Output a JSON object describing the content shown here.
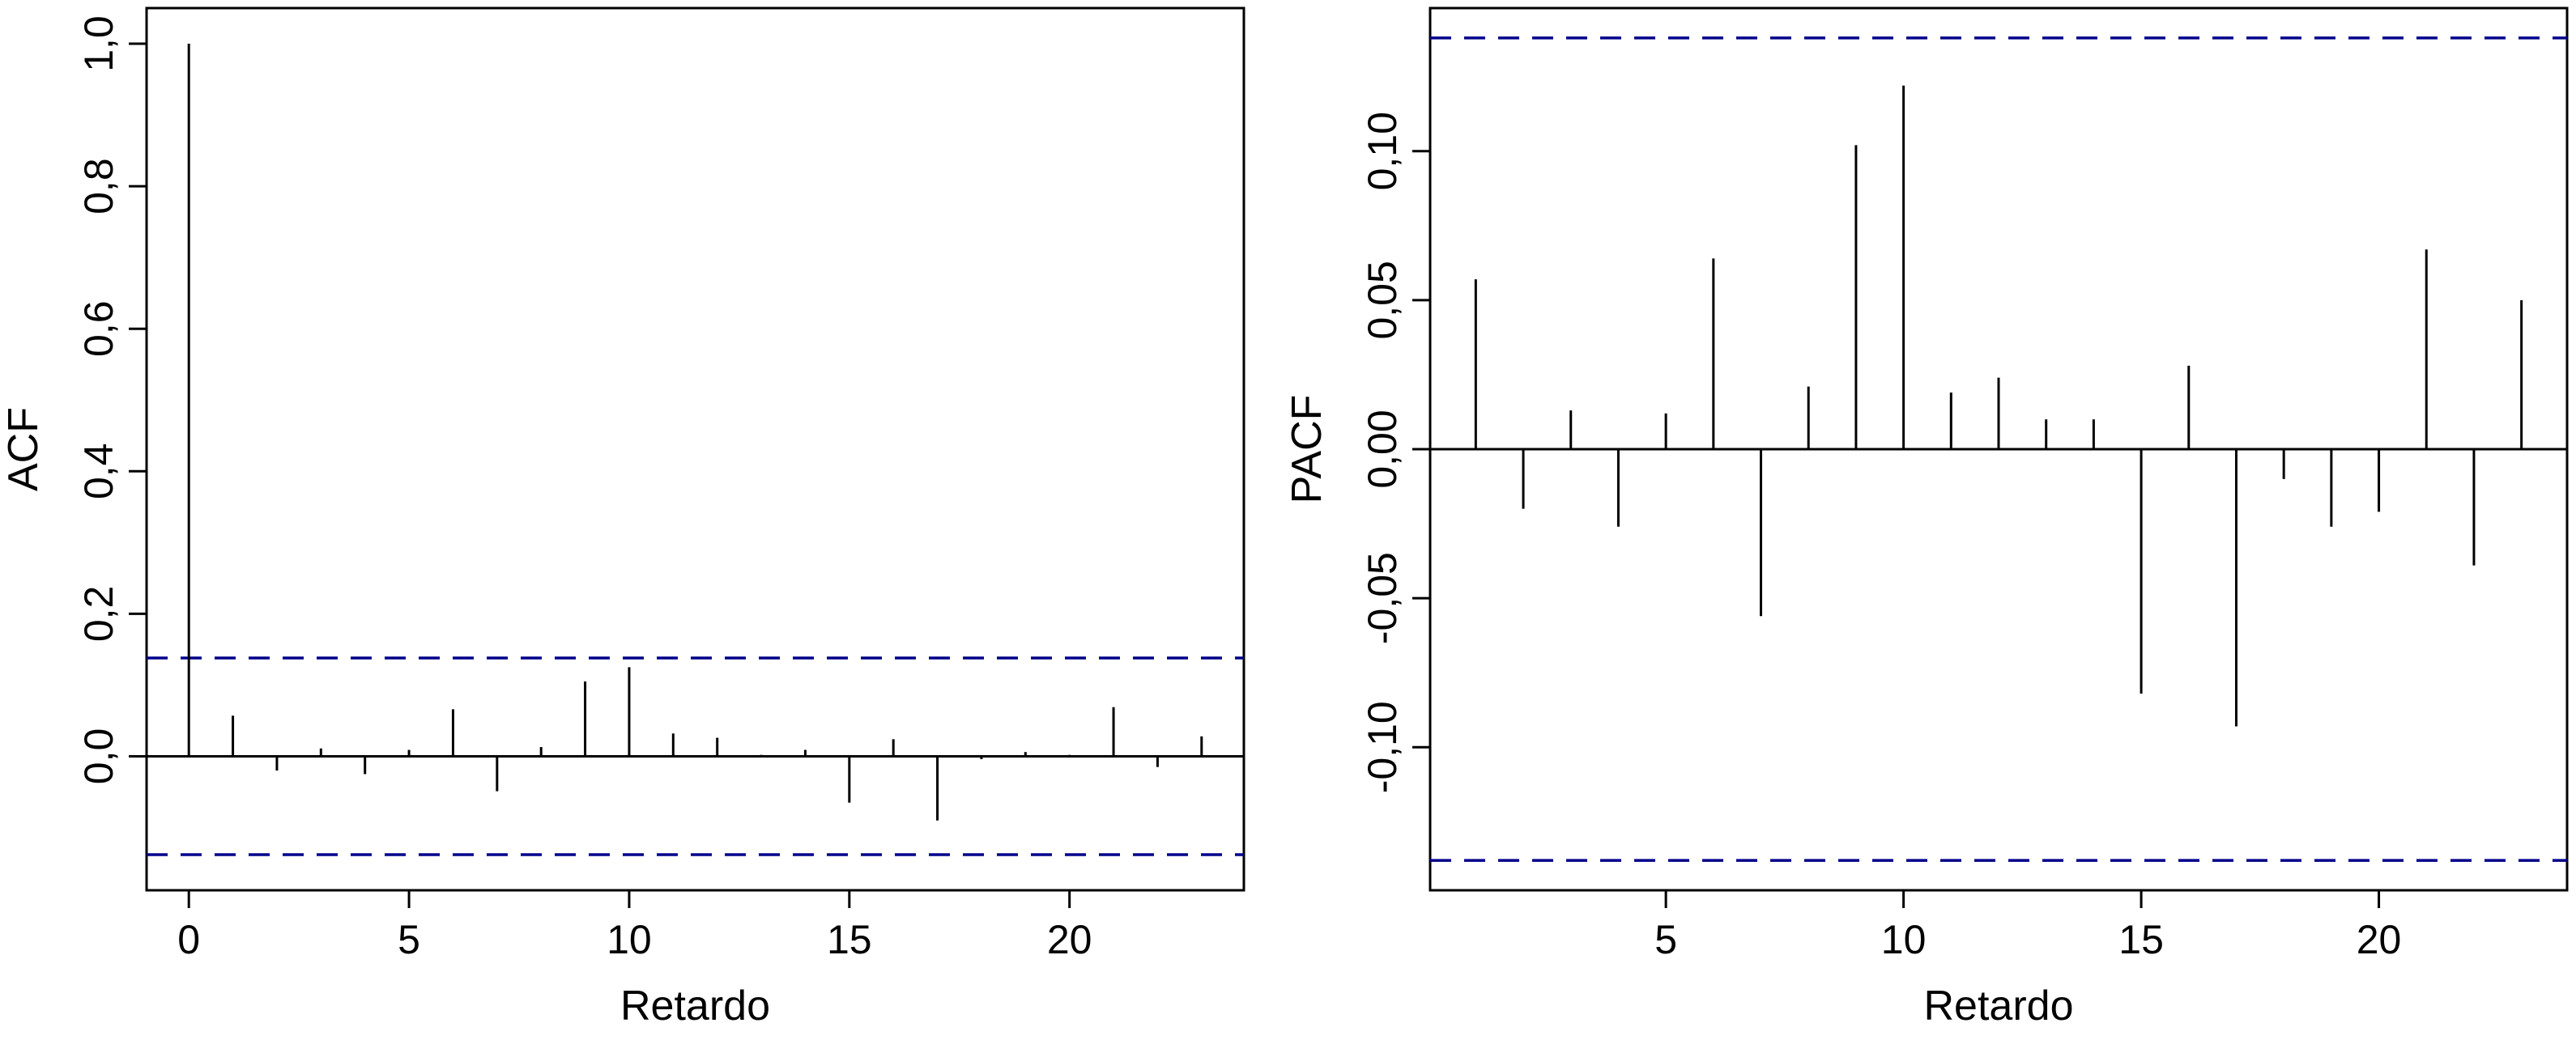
{
  "chart_data": [
    {
      "type": "bar",
      "ylabel": "ACF",
      "xlabel": "Retardo",
      "xlim": [
        -0.96,
        23.96
      ],
      "ylim": [
        -0.188,
        1.05
      ],
      "x_ticks": [
        0,
        5,
        10,
        15,
        20
      ],
      "x_tick_labels": [
        "0",
        "5",
        "10",
        "15",
        "20"
      ],
      "y_ticks": [
        0.0,
        0.2,
        0.4,
        0.6,
        0.8,
        1.0
      ],
      "y_tick_labels": [
        "0,0",
        "0,2",
        "0,4",
        "0,6",
        "0,8",
        "1,0"
      ],
      "lags": [
        0,
        1,
        2,
        3,
        4,
        5,
        6,
        7,
        8,
        9,
        10,
        11,
        12,
        13,
        14,
        15,
        16,
        17,
        18,
        19,
        20,
        21,
        22,
        23
      ],
      "values": [
        1.0,
        0.057,
        -0.02,
        0.011,
        -0.025,
        0.009,
        0.066,
        -0.049,
        0.013,
        0.105,
        0.125,
        0.032,
        0.026,
        0.002,
        0.009,
        -0.065,
        0.024,
        -0.09,
        -0.004,
        0.006,
        0.002,
        0.069,
        -0.015,
        0.028
      ],
      "confidence_bounds": [
        0.138,
        -0.138
      ],
      "colors": {
        "bars": "#000000",
        "confidence": "#00008b",
        "frame": "#000000"
      }
    },
    {
      "type": "bar",
      "ylabel": "PACF",
      "xlabel": "Retardo",
      "xlim": [
        0.04,
        23.96
      ],
      "ylim": [
        -0.148,
        0.148
      ],
      "x_ticks": [
        5,
        10,
        15,
        20
      ],
      "x_tick_labels": [
        "5",
        "10",
        "15",
        "20"
      ],
      "y_ticks": [
        -0.1,
        -0.05,
        0.0,
        0.05,
        0.1
      ],
      "y_tick_labels": [
        "-0,10",
        "-0,05",
        "0,00",
        "0,05",
        "0,10"
      ],
      "lags": [
        1,
        2,
        3,
        4,
        5,
        6,
        7,
        8,
        9,
        10,
        11,
        12,
        13,
        14,
        15,
        16,
        17,
        18,
        19,
        20,
        21,
        22,
        23
      ],
      "values": [
        0.057,
        -0.02,
        0.013,
        -0.026,
        0.012,
        0.064,
        -0.056,
        0.021,
        0.102,
        0.122,
        0.019,
        0.024,
        0.01,
        0.01,
        -0.082,
        0.028,
        -0.093,
        -0.01,
        -0.026,
        -0.021,
        0.067,
        -0.039,
        0.05
      ],
      "confidence_bounds": [
        0.138,
        -0.138
      ],
      "colors": {
        "bars": "#000000",
        "confidence": "#00008b",
        "frame": "#000000"
      }
    }
  ]
}
